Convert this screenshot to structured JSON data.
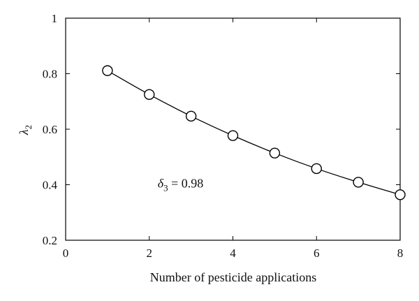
{
  "chart_data": {
    "type": "line",
    "title": "",
    "xlabel": "Number of pesticide applications",
    "ylabel": {
      "symbol": "λ",
      "subscript": "2"
    },
    "xlim": [
      0,
      8
    ],
    "ylim": [
      0.2,
      1
    ],
    "x_ticks": [
      0,
      2,
      4,
      6,
      8
    ],
    "y_ticks": [
      0.2,
      0.4,
      0.6,
      0.8,
      1
    ],
    "x_tick_labels": [
      "0",
      "2",
      "4",
      "6",
      "8"
    ],
    "y_tick_labels": [
      "0.2",
      "0.4",
      "0.6",
      "0.8",
      "1"
    ],
    "grid": false,
    "series": [
      {
        "x": [
          1,
          2,
          3,
          4,
          5,
          6,
          7,
          8
        ],
        "y": [
          0.811,
          0.725,
          0.647,
          0.577,
          0.514,
          0.458,
          0.409,
          0.364
        ],
        "marker": "open-circle",
        "line": "smooth"
      }
    ],
    "annotation": {
      "symbol": "δ",
      "subscript": "3",
      "text": " = 0.98",
      "x": 2.2,
      "y": 0.39
    }
  }
}
